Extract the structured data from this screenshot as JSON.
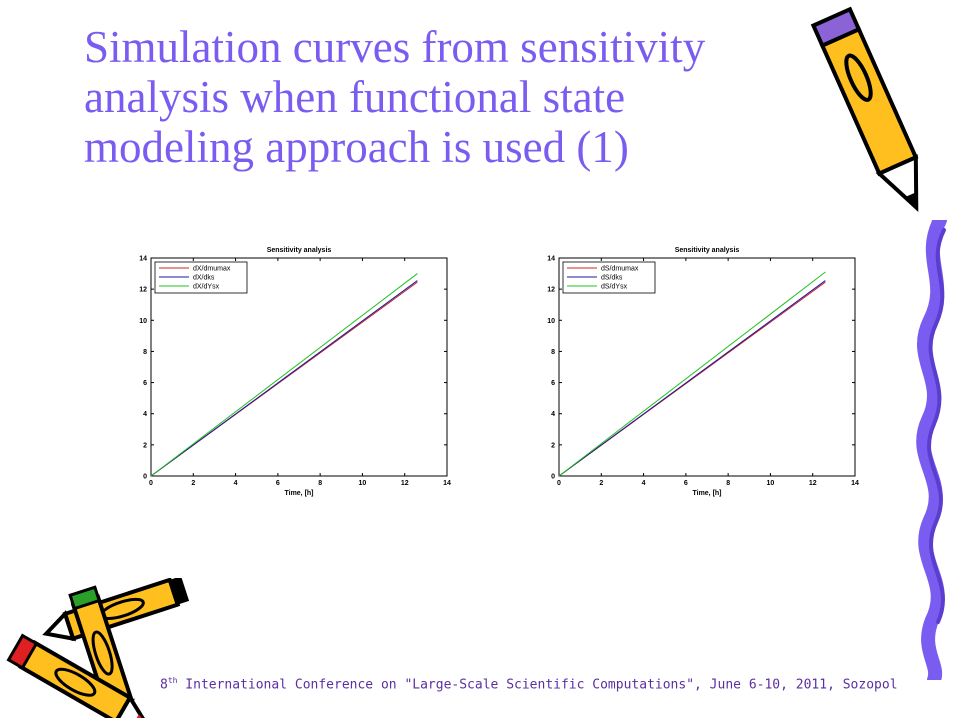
{
  "slide": {
    "title_lines": [
      "Simulation curves from sensitivity",
      "analysis when functional state",
      "modeling approach is used (1)"
    ],
    "footer_prefix": "8",
    "footer_sup": "th",
    "footer_text": " International Conference on \"Large-Scale Scientific Computations\", June 6-10, 2011, Sozopol",
    "icons": [
      "pencil-cluster-icon",
      "pencil-top-right-icon",
      "pencil-bottom-left-icon",
      "scribble-border-icon"
    ],
    "colors": {
      "title": "#7b5cf0",
      "footer": "#5b2fa0"
    }
  },
  "chart_data": [
    {
      "type": "line",
      "title": "Sensitivity analysis",
      "xlabel": "Time, [h]",
      "ylabel": "",
      "xlim": [
        0,
        14
      ],
      "ylim": [
        0,
        14
      ],
      "xticks": [
        0,
        2,
        4,
        6,
        8,
        10,
        12,
        14
      ],
      "yticks": [
        0,
        2,
        4,
        6,
        8,
        10,
        12,
        14
      ],
      "legend_position": "top-left",
      "series": [
        {
          "name": "dX/dmumax",
          "color": "#d02020",
          "x": [
            0,
            12.6
          ],
          "y": [
            0,
            12.45
          ]
        },
        {
          "name": "dX/dks",
          "color": "#1a1aa0",
          "x": [
            0,
            12.6
          ],
          "y": [
            0,
            12.55
          ]
        },
        {
          "name": "dX/dYsx",
          "color": "#20c020",
          "x": [
            0,
            12.6
          ],
          "y": [
            0,
            13.0
          ]
        }
      ]
    },
    {
      "type": "line",
      "title": "Sensitivity analysis",
      "xlabel": "Time, [h]",
      "ylabel": "",
      "xlim": [
        0,
        14
      ],
      "ylim": [
        0,
        14
      ],
      "xticks": [
        0,
        2,
        4,
        6,
        8,
        10,
        12,
        14
      ],
      "yticks": [
        0,
        2,
        4,
        6,
        8,
        10,
        12,
        14
      ],
      "legend_position": "top-left",
      "series": [
        {
          "name": "dS/dmumax",
          "color": "#d02020",
          "x": [
            0,
            12.6
          ],
          "y": [
            0,
            12.45
          ]
        },
        {
          "name": "dS/dks",
          "color": "#1a1aa0",
          "x": [
            0,
            12.6
          ],
          "y": [
            0,
            12.55
          ]
        },
        {
          "name": "dS/dYsx",
          "color": "#20c020",
          "x": [
            0,
            12.6
          ],
          "y": [
            0,
            13.1
          ]
        }
      ]
    }
  ]
}
